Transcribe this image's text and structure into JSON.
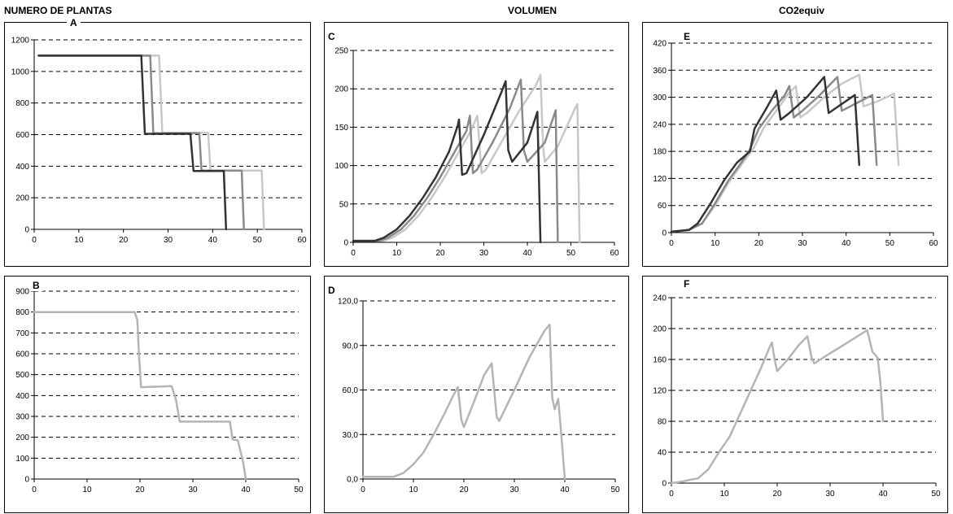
{
  "titles": {
    "column_a": "NUMERO DE PLANTAS",
    "column_b": "VOLUMEN",
    "column_c": "CO2equiv"
  },
  "chart_data": [
    {
      "id": "A",
      "letter": "A",
      "type": "line",
      "xlim": [
        0,
        60
      ],
      "xticks": [
        0,
        10,
        20,
        30,
        40,
        50,
        60
      ],
      "ylim": [
        0,
        1200
      ],
      "yticks": [
        0,
        200,
        400,
        600,
        800,
        1000,
        1200
      ],
      "ytick_labels": [
        "0",
        "200",
        "400",
        "600",
        "800",
        "1000",
        "1200"
      ],
      "grid": "horizontal-dashed",
      "series": [
        {
          "color": "#c8c8c8",
          "points": [
            [
              1,
              1100
            ],
            [
              28,
              1100
            ],
            [
              28.7,
              612
            ],
            [
              39,
              612
            ],
            [
              39.5,
              372
            ],
            [
              51,
              372
            ],
            [
              51.5,
              0
            ]
          ]
        },
        {
          "color": "#8a8a8a",
          "points": [
            [
              1,
              1100
            ],
            [
              26,
              1100
            ],
            [
              26.7,
              608
            ],
            [
              37,
              608
            ],
            [
              37.5,
              372
            ],
            [
              46.5,
              372
            ],
            [
              47,
              0
            ]
          ]
        },
        {
          "color": "#333333",
          "points": [
            [
              1,
              1100
            ],
            [
              24,
              1100
            ],
            [
              24.8,
              605
            ],
            [
              35,
              605
            ],
            [
              35.7,
              370
            ],
            [
              42.5,
              370
            ],
            [
              43,
              0
            ]
          ]
        }
      ]
    },
    {
      "id": "B",
      "letter": "B",
      "type": "line",
      "xlim": [
        0,
        50
      ],
      "xticks": [
        0,
        10,
        20,
        30,
        40,
        50
      ],
      "ylim": [
        0,
        900
      ],
      "yticks": [
        0,
        100,
        200,
        300,
        400,
        500,
        600,
        700,
        800,
        900
      ],
      "ytick_labels": [
        "0",
        "100",
        "200",
        "300",
        "400",
        "500",
        "600",
        "700",
        "800",
        "900"
      ],
      "grid": "horizontal-dashed",
      "series": [
        {
          "color": "#b4b4b4",
          "points": [
            [
              0,
              800
            ],
            [
              19,
              800
            ],
            [
              19.5,
              760
            ],
            [
              19.8,
              600
            ],
            [
              20.2,
              440
            ],
            [
              26,
              445
            ],
            [
              26.8,
              380
            ],
            [
              27.5,
              275
            ],
            [
              37,
              275
            ],
            [
              37.5,
              190
            ],
            [
              38.5,
              185
            ],
            [
              39.5,
              80
            ],
            [
              40,
              0
            ]
          ]
        }
      ]
    },
    {
      "id": "C",
      "letter": "C",
      "type": "line",
      "xlim": [
        0,
        60
      ],
      "xticks": [
        0,
        10,
        20,
        30,
        40,
        50,
        60
      ],
      "ylim": [
        0,
        250
      ],
      "yticks": [
        0,
        50,
        100,
        150,
        200,
        250
      ],
      "ytick_labels": [
        "0",
        "50",
        "100",
        "150",
        "200",
        "250"
      ],
      "grid": "horizontal-dashed",
      "series": [
        {
          "color": "#c8c8c8",
          "points": [
            [
              0,
              2
            ],
            [
              7,
              2
            ],
            [
              9,
              6
            ],
            [
              12,
              17
            ],
            [
              15,
              35
            ],
            [
              18,
              58
            ],
            [
              21,
              85
            ],
            [
              24,
              115
            ],
            [
              27,
              145
            ],
            [
              28.5,
              165
            ],
            [
              29.5,
              90
            ],
            [
              30.5,
              95
            ],
            [
              34,
              130
            ],
            [
              38,
              170
            ],
            [
              42,
              205
            ],
            [
              43,
              218
            ],
            [
              43.6,
              125
            ],
            [
              44,
              105
            ],
            [
              47,
              125
            ],
            [
              51,
              175
            ],
            [
              51.5,
              180
            ],
            [
              52,
              0
            ]
          ]
        },
        {
          "color": "#8a8a8a",
          "points": [
            [
              0,
              2
            ],
            [
              6,
              2
            ],
            [
              8,
              6
            ],
            [
              11,
              17
            ],
            [
              14,
              35
            ],
            [
              17,
              58
            ],
            [
              20,
              85
            ],
            [
              23,
              115
            ],
            [
              26,
              145
            ],
            [
              26.8,
              165
            ],
            [
              27.5,
              90
            ],
            [
              28.5,
              95
            ],
            [
              32,
              130
            ],
            [
              36,
              175
            ],
            [
              38.5,
              212
            ],
            [
              39.2,
              120
            ],
            [
              40,
              105
            ],
            [
              44,
              130
            ],
            [
              46.5,
              172
            ],
            [
              47,
              0
            ]
          ]
        },
        {
          "color": "#333333",
          "points": [
            [
              0,
              2
            ],
            [
              5,
              2
            ],
            [
              7,
              6
            ],
            [
              10,
              17
            ],
            [
              13,
              35
            ],
            [
              16,
              58
            ],
            [
              19,
              85
            ],
            [
              22,
              118
            ],
            [
              24,
              152
            ],
            [
              24.3,
              160
            ],
            [
              25,
              88
            ],
            [
              26,
              90
            ],
            [
              30,
              140
            ],
            [
              34,
              195
            ],
            [
              35,
              210
            ],
            [
              35.6,
              120
            ],
            [
              36.5,
              105
            ],
            [
              40,
              130
            ],
            [
              42.3,
              170
            ],
            [
              43,
              0
            ]
          ]
        }
      ]
    },
    {
      "id": "D",
      "letter": "D",
      "type": "line",
      "xlim": [
        0,
        50
      ],
      "xticks": [
        0,
        10,
        20,
        30,
        40,
        50
      ],
      "ylim": [
        0,
        120
      ],
      "yticks": [
        0,
        30,
        60,
        90,
        120
      ],
      "ytick_labels": [
        "0,0",
        "30,0",
        "60,0",
        "90,0",
        "120,0"
      ],
      "grid": "horizontal-dashed",
      "series": [
        {
          "color": "#b4b4b4",
          "points": [
            [
              0,
              1.5
            ],
            [
              6,
              1.5
            ],
            [
              8,
              4
            ],
            [
              10,
              10
            ],
            [
              12,
              18
            ],
            [
              14,
              30
            ],
            [
              16,
              43
            ],
            [
              18,
              57
            ],
            [
              18.8,
              62
            ],
            [
              19.5,
              40
            ],
            [
              20,
              35
            ],
            [
              22,
              52
            ],
            [
              24,
              70
            ],
            [
              25.5,
              78
            ],
            [
              26.5,
              42
            ],
            [
              27,
              39
            ],
            [
              30,
              60
            ],
            [
              33,
              82
            ],
            [
              36,
              100
            ],
            [
              37,
              104
            ],
            [
              37.5,
              55
            ],
            [
              38,
              47
            ],
            [
              38.7,
              54
            ],
            [
              39.3,
              30
            ],
            [
              40,
              0
            ]
          ]
        }
      ]
    },
    {
      "id": "E",
      "letter": "E",
      "type": "line",
      "xlim": [
        0,
        60
      ],
      "xticks": [
        0,
        10,
        20,
        30,
        40,
        50,
        60
      ],
      "ylim": [
        0,
        420
      ],
      "yticks": [
        0,
        60,
        120,
        180,
        240,
        300,
        360,
        420
      ],
      "ytick_labels": [
        "0",
        "60",
        "120",
        "180",
        "240",
        "300",
        "360",
        "420"
      ],
      "grid": "horizontal-dashed",
      "series": [
        {
          "color": "#c8c8c8",
          "points": [
            [
              0,
              2
            ],
            [
              4,
              6
            ],
            [
              7,
              20
            ],
            [
              10,
              60
            ],
            [
              13,
              110
            ],
            [
              16,
              150
            ],
            [
              19,
              190
            ],
            [
              21,
              230
            ],
            [
              24,
              270
            ],
            [
              27,
              310
            ],
            [
              28.5,
              325
            ],
            [
              29.5,
              255
            ],
            [
              31,
              265
            ],
            [
              35,
              300
            ],
            [
              39,
              330
            ],
            [
              43,
              350
            ],
            [
              44,
              280
            ],
            [
              47,
              290
            ],
            [
              51,
              308
            ],
            [
              52,
              150
            ]
          ]
        },
        {
          "color": "#8a8a8a",
          "points": [
            [
              0,
              2
            ],
            [
              4,
              6
            ],
            [
              7,
              20
            ],
            [
              10,
              65
            ],
            [
              13,
              115
            ],
            [
              16,
              155
            ],
            [
              18,
              185
            ],
            [
              20,
              230
            ],
            [
              23,
              270
            ],
            [
              26,
              305
            ],
            [
              27,
              325
            ],
            [
              28,
              255
            ],
            [
              30,
              270
            ],
            [
              34,
              305
            ],
            [
              38,
              345
            ],
            [
              39,
              270
            ],
            [
              42,
              285
            ],
            [
              46,
              305
            ],
            [
              47,
              150
            ]
          ]
        },
        {
          "color": "#333333",
          "points": [
            [
              0,
              2
            ],
            [
              4,
              6
            ],
            [
              6,
              20
            ],
            [
              9,
              65
            ],
            [
              12,
              115
            ],
            [
              15,
              155
            ],
            [
              18,
              180
            ],
            [
              19,
              230
            ],
            [
              22,
              280
            ],
            [
              24,
              315
            ],
            [
              25,
              250
            ],
            [
              27,
              265
            ],
            [
              31,
              300
            ],
            [
              35,
              345
            ],
            [
              36,
              265
            ],
            [
              39,
              285
            ],
            [
              42,
              305
            ],
            [
              43,
              150
            ]
          ]
        }
      ]
    },
    {
      "id": "F",
      "letter": "F",
      "type": "line",
      "xlim": [
        0,
        50
      ],
      "xticks": [
        0,
        10,
        20,
        30,
        40,
        50
      ],
      "ylim": [
        0,
        240
      ],
      "yticks": [
        0,
        40,
        80,
        120,
        160,
        200,
        240
      ],
      "ytick_labels": [
        "0",
        "40",
        "80",
        "120",
        "160",
        "200",
        "240"
      ],
      "grid": "horizontal-dashed",
      "series": [
        {
          "color": "#b4b4b4",
          "points": [
            [
              0,
              0
            ],
            [
              2,
              2
            ],
            [
              4,
              5
            ],
            [
              5,
              6
            ],
            [
              7,
              18
            ],
            [
              9,
              40
            ],
            [
              11,
              60
            ],
            [
              13,
              90
            ],
            [
              15,
              120
            ],
            [
              17,
              150
            ],
            [
              18.5,
              175
            ],
            [
              19,
              182
            ],
            [
              19.5,
              160
            ],
            [
              20,
              145
            ],
            [
              22,
              160
            ],
            [
              24,
              178
            ],
            [
              25.7,
              190
            ],
            [
              26.5,
              162
            ],
            [
              27,
              155
            ],
            [
              30,
              168
            ],
            [
              34,
              185
            ],
            [
              37,
              198
            ],
            [
              38,
              170
            ],
            [
              39,
              162
            ],
            [
              39.5,
              130
            ],
            [
              40,
              80
            ]
          ]
        }
      ]
    }
  ]
}
